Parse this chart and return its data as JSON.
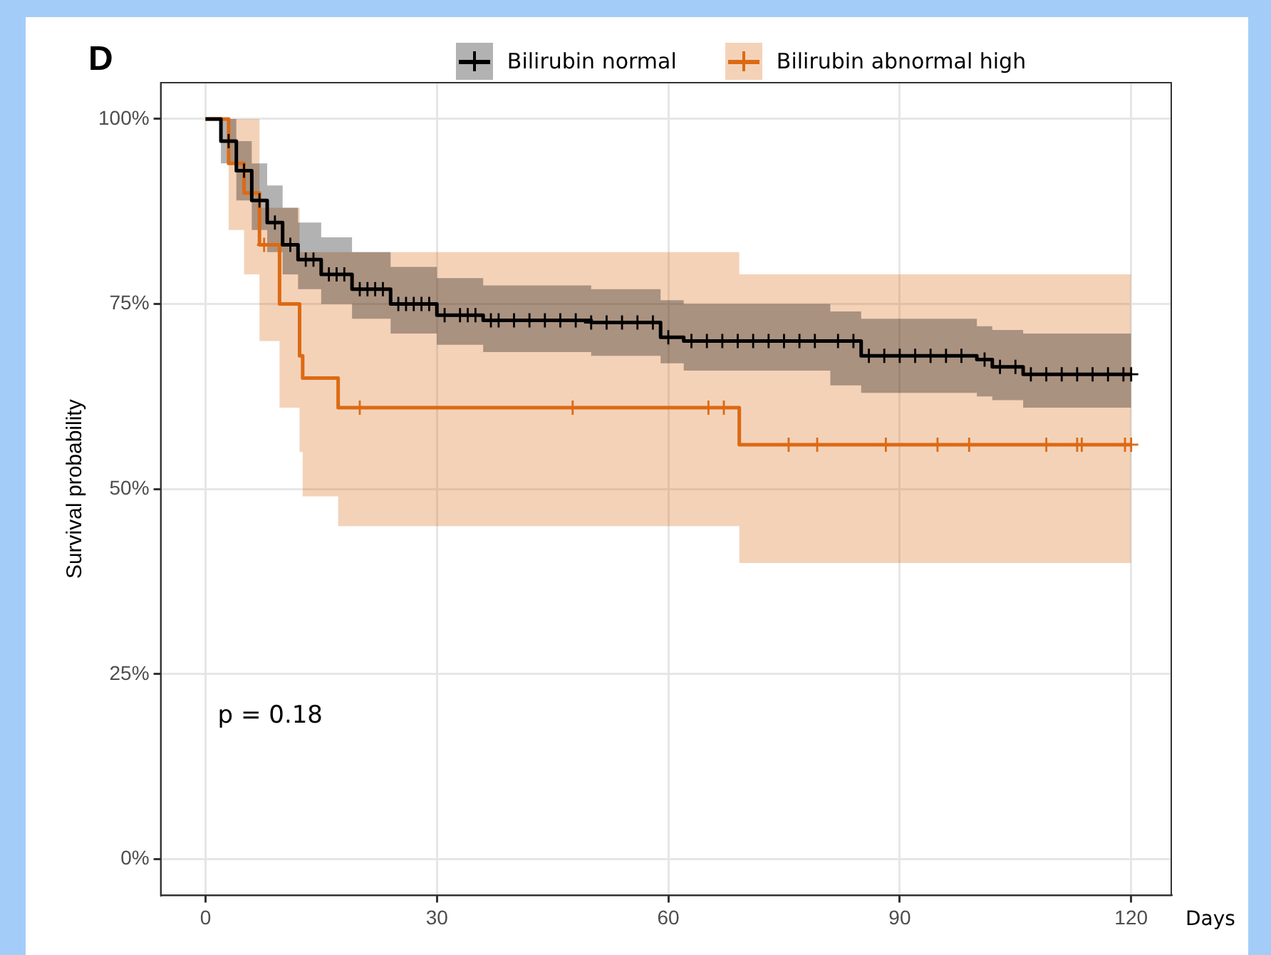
{
  "chart_data": {
    "type": "step",
    "title": "D",
    "xlabel": "Days",
    "ylabel": "Survival probability",
    "xlim": [
      -5.8,
      125.2
    ],
    "xticks": [
      0,
      30,
      60,
      90,
      120
    ],
    "ylim": [
      -4.9,
      104.9
    ],
    "yticks": [
      {
        "value": 0,
        "label": "0%"
      },
      {
        "value": 25,
        "label": "25%"
      },
      {
        "value": 50,
        "label": "50%"
      },
      {
        "value": 75,
        "label": "75%"
      },
      {
        "value": 100,
        "label": "100%"
      }
    ],
    "grid": true,
    "legend": "top",
    "line_style": "solid",
    "annotations": [
      "p = 0.18"
    ],
    "series": [
      {
        "name": "Bilirubin normal",
        "color": "#000000",
        "marker": "none",
        "x": [
          0,
          2,
          4,
          6,
          8,
          10,
          12,
          15,
          19,
          24,
          30,
          36,
          50,
          59,
          62,
          81,
          85,
          100,
          102,
          106,
          120
        ],
        "values": [
          100,
          97,
          93,
          89,
          86,
          83,
          81,
          79,
          77,
          75,
          73.5,
          72.8,
          72.5,
          70.5,
          70,
          70,
          68,
          67.5,
          66.5,
          65.5,
          65.5
        ],
        "upper": [
          100,
          100,
          97,
          94,
          91,
          88,
          86,
          84,
          82,
          80,
          78.5,
          77.5,
          77,
          75.5,
          75,
          74,
          73,
          72,
          71.5,
          71,
          71
        ],
        "lower": [
          100,
          94,
          89,
          85,
          82,
          79,
          77,
          75,
          73,
          71,
          69.5,
          68.5,
          68,
          67,
          66,
          64,
          63,
          62.5,
          62,
          61,
          61
        ]
      },
      {
        "name": "Bilirubin abnormal high",
        "color": "#dc6a14",
        "marker": "none",
        "x": [
          0,
          3,
          5,
          7,
          9.6,
          12.2,
          12.6,
          17.2,
          69.2,
          120
        ],
        "values": [
          100,
          94,
          90,
          83,
          75,
          68,
          65,
          61,
          56,
          56
        ],
        "upper": [
          100,
          100,
          100,
          88,
          88,
          82,
          82,
          82,
          79,
          79
        ],
        "lower": [
          100,
          85,
          79,
          70,
          61,
          55,
          49,
          45,
          40,
          40
        ]
      },
      {
        "type": "scatter",
        "color": "#000000",
        "marker": "cross",
        "x": [
          3,
          5,
          7,
          9,
          11,
          13,
          14,
          16,
          17,
          18,
          20,
          21,
          22,
          23,
          25,
          26,
          27,
          28,
          29,
          31,
          33,
          34,
          35,
          37,
          38,
          40,
          42,
          44,
          46,
          48,
          50,
          52,
          54,
          56,
          58,
          60,
          63,
          65,
          67,
          69,
          71,
          73,
          75,
          77,
          79,
          82,
          84,
          86,
          88,
          90,
          92,
          94,
          96,
          98,
          101,
          103,
          105,
          107,
          109,
          111,
          113,
          115,
          117,
          119,
          120
        ],
        "values": [
          97,
          93,
          89,
          86,
          83,
          81,
          81,
          79,
          79,
          79,
          77,
          77,
          77,
          77,
          75,
          75,
          75,
          75,
          75,
          73.5,
          73.5,
          73.5,
          73.5,
          72.8,
          72.8,
          72.8,
          72.8,
          72.8,
          72.8,
          72.8,
          72.5,
          72.5,
          72.5,
          72.5,
          72.5,
          70.5,
          70,
          70,
          70,
          70,
          70,
          70,
          70,
          70,
          70,
          70,
          70,
          68,
          68,
          68,
          68,
          68,
          68,
          68,
          67.5,
          66.5,
          66.5,
          65.5,
          65.5,
          65.5,
          65.5,
          65.5,
          65.5,
          65.5,
          65.5
        ]
      },
      {
        "type": "scatter",
        "color": "#dc6a14",
        "marker": "cross",
        "x": [
          7.6,
          20,
          47.6,
          65.2,
          67.2,
          75.6,
          79.3,
          88.2,
          94.9,
          99,
          109,
          113,
          113.6,
          119.2,
          120
        ],
        "values": [
          83,
          61,
          61,
          61,
          61,
          56,
          56,
          56,
          56,
          56,
          56,
          56,
          56,
          56,
          56
        ]
      }
    ]
  }
}
